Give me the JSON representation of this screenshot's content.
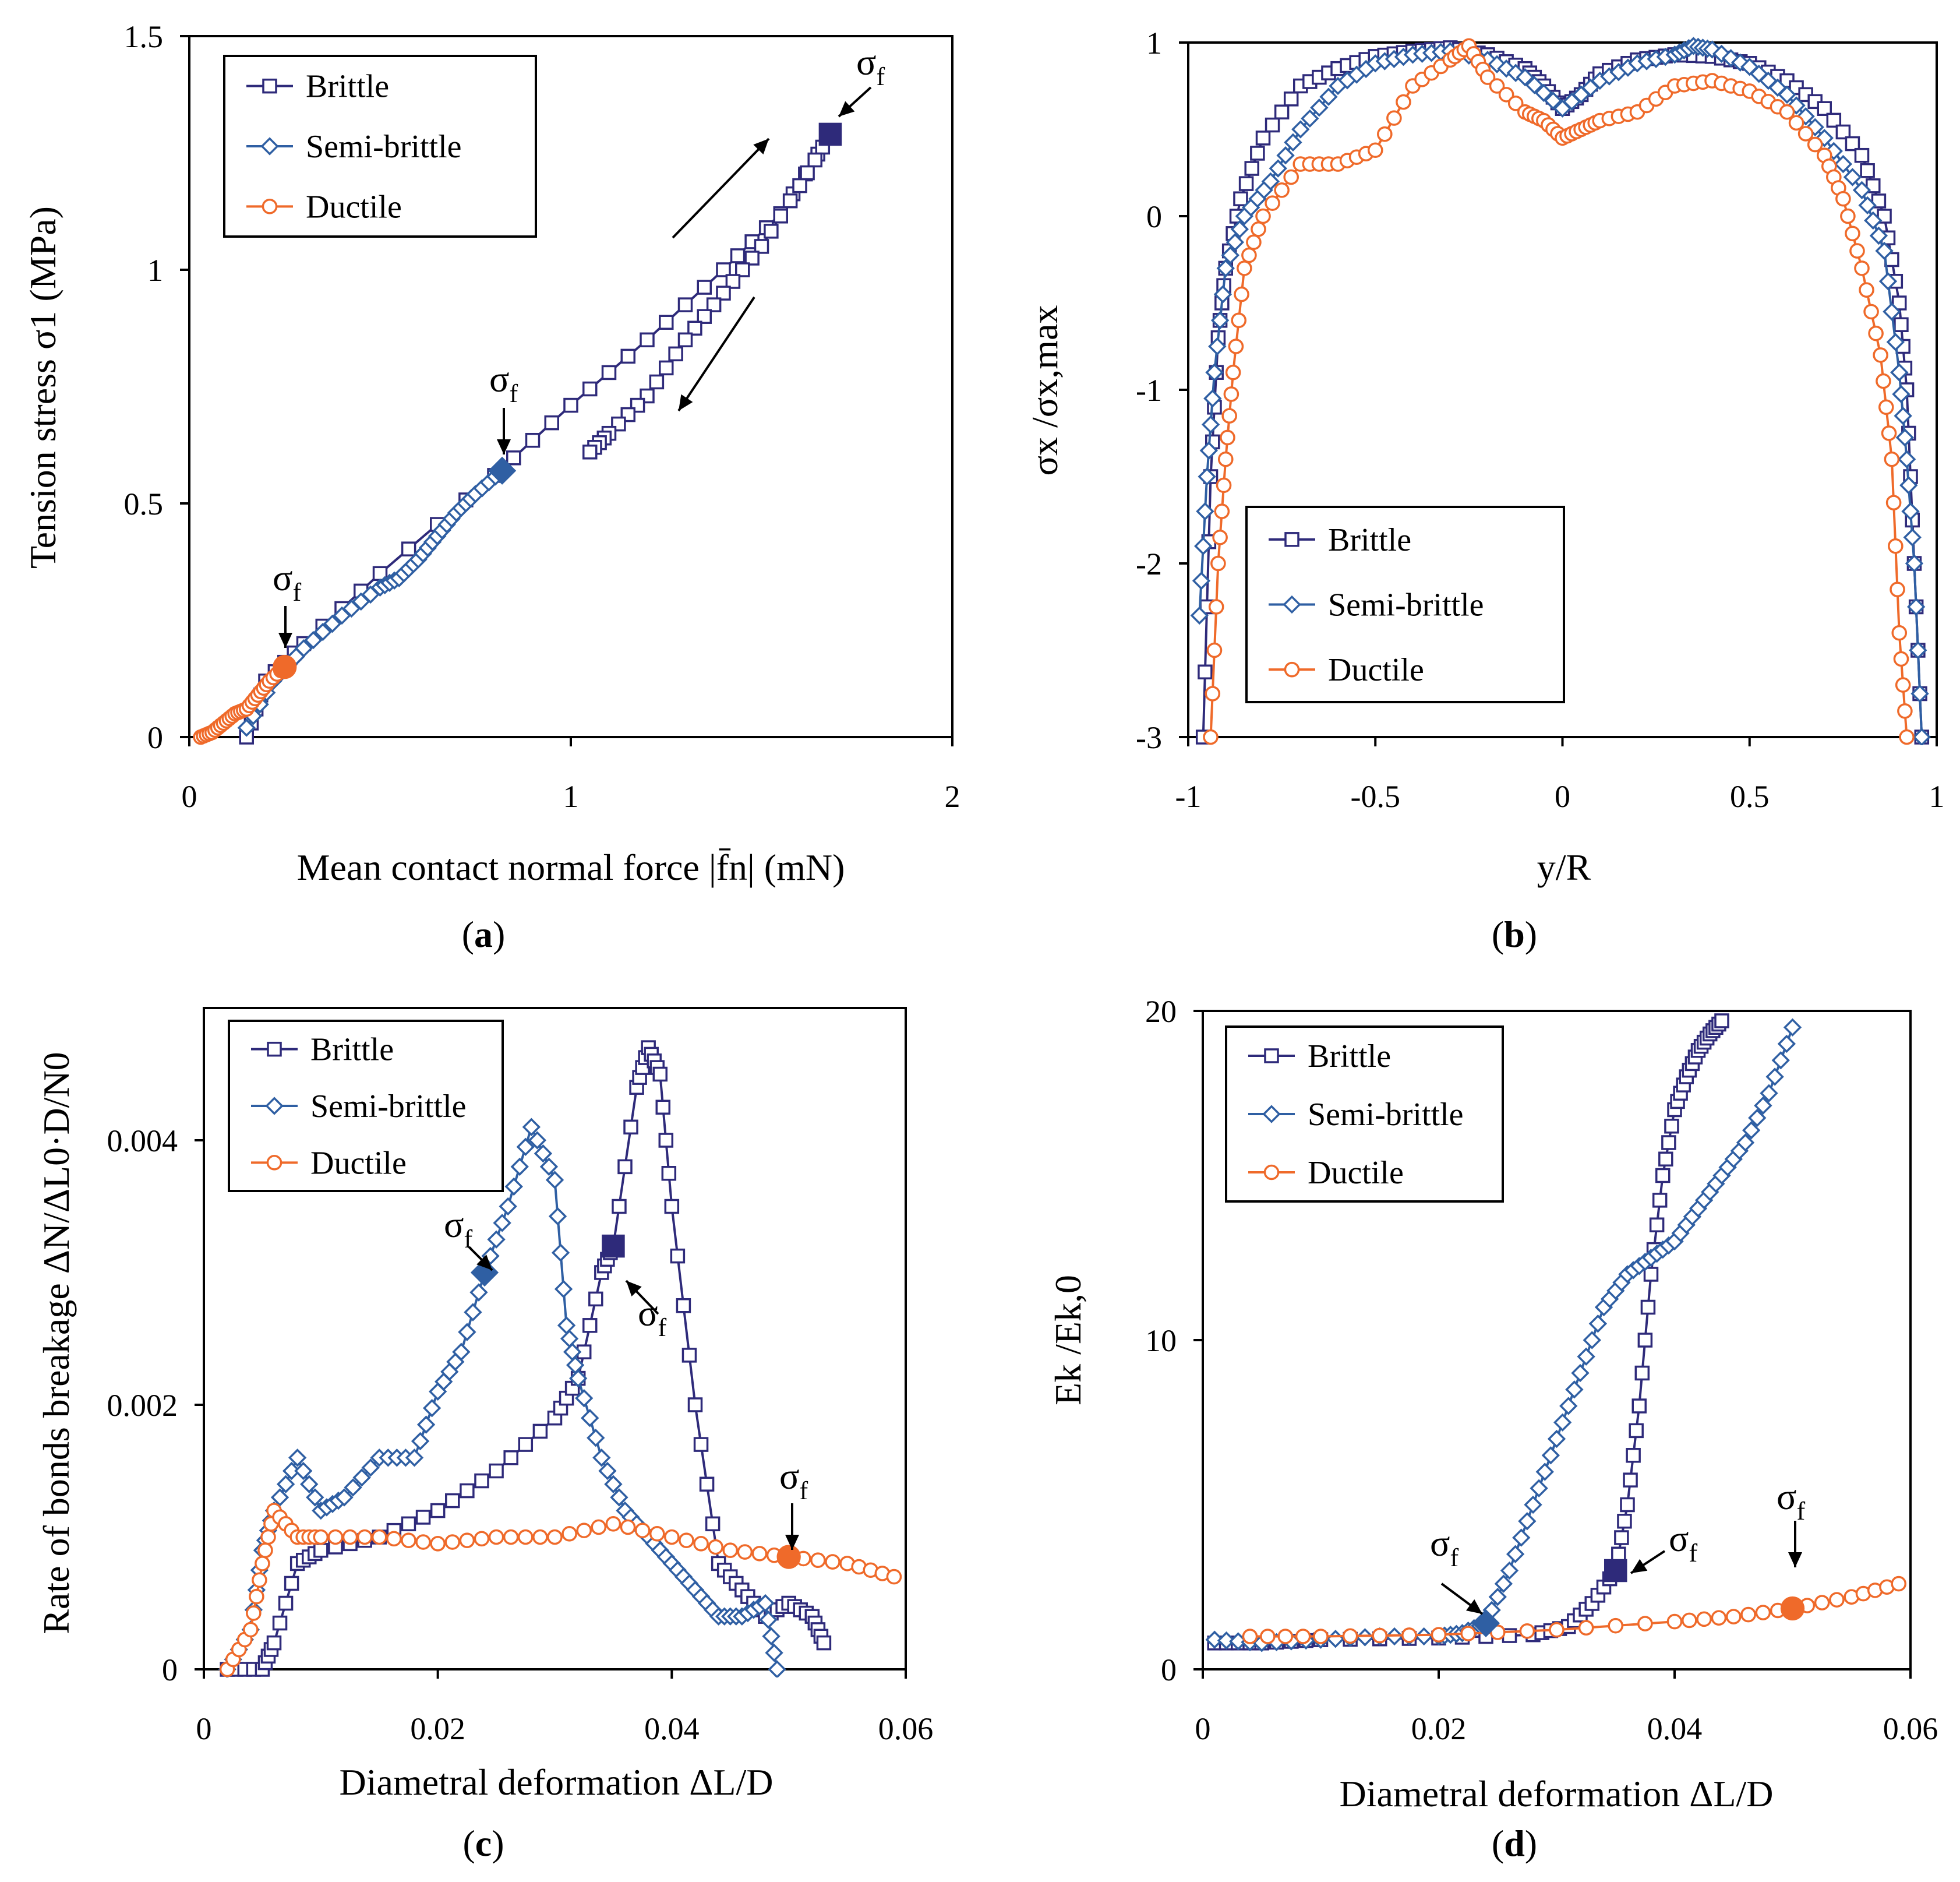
{
  "colors": {
    "brittle": "#2e2a7a",
    "semi_brittle": "#2f5fa3",
    "ductile": "#ef6a2a",
    "frame": "#000000"
  },
  "legend": {
    "brittle": "Brittle",
    "semi_brittle": "Semi-brittle",
    "ductile": "Ductile"
  },
  "failure_label": "σ",
  "failure_sub": "f",
  "chart_data": [
    {
      "panel": "(a)",
      "panel_letter": "a",
      "type": "line",
      "title": "",
      "xlabel": "Mean contact normal force |f̄n|  (mN)",
      "ylabel": "Tension stress  σ1   (MPa)",
      "xlim": [
        0,
        2
      ],
      "ylim": [
        0,
        1.5
      ],
      "xticks": [
        "0",
        "1",
        "2"
      ],
      "yticks": [
        "0",
        "0.5",
        "1",
        "1.5"
      ],
      "legend_position": "top-left",
      "series": [
        {
          "name": "Brittle",
          "marker": "square",
          "x": [
            0.15,
            0.2,
            0.3,
            0.5,
            0.8,
            1.0,
            1.2,
            1.4,
            1.55,
            1.68,
            1.6,
            1.5,
            1.4,
            1.3,
            1.2,
            1.1,
            1.05
          ],
          "y": [
            0.0,
            0.12,
            0.2,
            0.35,
            0.56,
            0.71,
            0.85,
            1.0,
            1.12,
            1.29,
            1.18,
            1.05,
            0.95,
            0.85,
            0.73,
            0.65,
            0.61
          ]
        },
        {
          "name": "Semi-brittle",
          "marker": "diamond",
          "x": [
            0.15,
            0.22,
            0.3,
            0.4,
            0.5,
            0.55,
            0.6,
            0.65,
            0.7,
            0.75,
            0.82
          ],
          "y": [
            0.02,
            0.12,
            0.19,
            0.26,
            0.32,
            0.34,
            0.38,
            0.43,
            0.48,
            0.52,
            0.57
          ]
        },
        {
          "name": "Ductile",
          "marker": "circle",
          "x": [
            0.03,
            0.06,
            0.09,
            0.12,
            0.15,
            0.18,
            0.21,
            0.25
          ],
          "y": [
            0.0,
            0.01,
            0.03,
            0.05,
            0.06,
            0.09,
            0.12,
            0.15
          ]
        }
      ],
      "failure_points": [
        {
          "series": "Brittle",
          "x": 1.68,
          "y": 1.29
        },
        {
          "series": "Semi-brittle",
          "x": 0.82,
          "y": 0.57
        },
        {
          "series": "Ductile",
          "x": 0.25,
          "y": 0.15
        }
      ]
    },
    {
      "panel": "(b)",
      "panel_letter": "b",
      "type": "line",
      "title": "",
      "xlabel": "y/R",
      "ylabel": "σx /σx,max",
      "xlim": [
        -1,
        1
      ],
      "ylim": [
        -3,
        1
      ],
      "xticks": [
        "-1",
        "-0.5",
        "0",
        "0.5",
        "1"
      ],
      "yticks": [
        "-3",
        "-2",
        "-1",
        "0",
        "1"
      ],
      "legend_position": "bottom-left",
      "series": [
        {
          "name": "Brittle",
          "marker": "square",
          "x": [
            -0.96,
            -0.94,
            -0.92,
            -0.9,
            -0.86,
            -0.8,
            -0.7,
            -0.6,
            -0.5,
            -0.4,
            -0.3,
            -0.2,
            -0.1,
            -0.05,
            0.0,
            0.05,
            0.1,
            0.2,
            0.3,
            0.4,
            0.5,
            0.6,
            0.7,
            0.8,
            0.86,
            0.9,
            0.92,
            0.94,
            0.96
          ],
          "y": [
            -3.0,
            -1.5,
            -0.7,
            -0.3,
            0.1,
            0.45,
            0.75,
            0.85,
            0.92,
            0.95,
            0.97,
            0.93,
            0.85,
            0.75,
            0.62,
            0.7,
            0.82,
            0.9,
            0.93,
            0.92,
            0.88,
            0.78,
            0.62,
            0.35,
            0.0,
            -0.5,
            -1.0,
            -2.0,
            -3.0
          ]
        },
        {
          "name": "Semi-brittle",
          "marker": "diamond",
          "x": [
            -0.97,
            -0.95,
            -0.93,
            -0.9,
            -0.85,
            -0.78,
            -0.7,
            -0.6,
            -0.5,
            -0.4,
            -0.3,
            -0.2,
            -0.1,
            0.0,
            0.1,
            0.2,
            0.3,
            0.35,
            0.4,
            0.5,
            0.6,
            0.7,
            0.8,
            0.86,
            0.9,
            0.92,
            0.94,
            0.96
          ],
          "y": [
            -2.3,
            -1.5,
            -0.9,
            -0.3,
            0.0,
            0.2,
            0.5,
            0.75,
            0.88,
            0.93,
            0.95,
            0.9,
            0.8,
            0.62,
            0.78,
            0.88,
            0.93,
            0.98,
            0.96,
            0.86,
            0.7,
            0.45,
            0.15,
            -0.2,
            -0.9,
            -1.4,
            -2.0,
            -3.0
          ]
        },
        {
          "name": "Ductile",
          "marker": "circle",
          "x": [
            -0.94,
            -0.92,
            -0.9,
            -0.88,
            -0.85,
            -0.8,
            -0.7,
            -0.6,
            -0.5,
            -0.4,
            -0.3,
            -0.25,
            -0.2,
            -0.1,
            -0.05,
            0.0,
            0.05,
            0.1,
            0.2,
            0.3,
            0.4,
            0.5,
            0.6,
            0.7,
            0.75,
            0.8,
            0.85,
            0.88,
            0.9,
            0.92
          ],
          "y": [
            -3.0,
            -2.0,
            -1.4,
            -0.9,
            -0.3,
            0.0,
            0.3,
            0.3,
            0.38,
            0.75,
            0.9,
            0.98,
            0.8,
            0.6,
            0.55,
            0.45,
            0.5,
            0.55,
            0.6,
            0.75,
            0.78,
            0.72,
            0.6,
            0.35,
            0.1,
            -0.3,
            -0.8,
            -1.4,
            -2.4,
            -3.0
          ]
        }
      ]
    },
    {
      "panel": "(c)",
      "panel_letter": "c",
      "type": "line",
      "title": "",
      "xlabel": "Diametral deformation   ΔL/D",
      "ylabel": "Rate of bonds breakage    ΔN/ΔL0·D/N0",
      "xlim": [
        0,
        0.06
      ],
      "ylim": [
        0,
        0.005
      ],
      "xticks": [
        "0",
        "0.02",
        "0.04",
        "0.06"
      ],
      "yticks": [
        "0",
        "0.002",
        "0.004"
      ],
      "legend_position": "top-left",
      "series": [
        {
          "name": "Brittle",
          "marker": "square",
          "x": [
            0.002,
            0.005,
            0.006,
            0.008,
            0.01,
            0.015,
            0.02,
            0.025,
            0.03,
            0.032,
            0.034,
            0.035,
            0.037,
            0.038,
            0.039,
            0.04,
            0.042,
            0.044,
            0.046,
            0.048,
            0.05,
            0.052,
            0.053
          ],
          "y": [
            0.0,
            0.0,
            0.0002,
            0.0008,
            0.0009,
            0.001,
            0.0012,
            0.0015,
            0.0019,
            0.0022,
            0.003,
            0.0032,
            0.0044,
            0.0047,
            0.0045,
            0.0035,
            0.002,
            0.0008,
            0.0006,
            0.0004,
            0.0005,
            0.0004,
            0.0002
          ]
        },
        {
          "name": "Semi-brittle",
          "marker": "diamond",
          "x": [
            0.002,
            0.004,
            0.005,
            0.006,
            0.008,
            0.01,
            0.012,
            0.015,
            0.018,
            0.02,
            0.022,
            0.024,
            0.026,
            0.028,
            0.03,
            0.031,
            0.032,
            0.034,
            0.036,
            0.038,
            0.04,
            0.042,
            0.044,
            0.046,
            0.048,
            0.049
          ],
          "y": [
            0.0,
            0.0003,
            0.0009,
            0.0012,
            0.0016,
            0.0012,
            0.0013,
            0.0016,
            0.0016,
            0.0021,
            0.0024,
            0.003,
            0.0035,
            0.0041,
            0.0037,
            0.0026,
            0.0022,
            0.0016,
            0.0012,
            0.001,
            0.0008,
            0.0006,
            0.0004,
            0.0004,
            0.0005,
            0.0
          ]
        },
        {
          "name": "Ductile",
          "marker": "circle",
          "x": [
            0.002,
            0.004,
            0.005,
            0.006,
            0.008,
            0.01,
            0.015,
            0.02,
            0.025,
            0.03,
            0.035,
            0.04,
            0.045,
            0.05,
            0.055,
            0.059
          ],
          "y": [
            0.0,
            0.0003,
            0.0008,
            0.0012,
            0.001,
            0.001,
            0.001,
            0.00095,
            0.001,
            0.001,
            0.0011,
            0.001,
            0.0009,
            0.00085,
            0.0008,
            0.0007
          ]
        }
      ],
      "failure_points": [
        {
          "series": "Semi-brittle",
          "x": 0.024,
          "y": 0.003
        },
        {
          "series": "Brittle",
          "x": 0.035,
          "y": 0.0032
        },
        {
          "series": "Ductile",
          "x": 0.05,
          "y": 0.00085
        }
      ]
    },
    {
      "panel": "(d)",
      "panel_letter": "d",
      "type": "line",
      "title": "",
      "xlabel": "Diametral deformation   ΔL/D",
      "ylabel": "Ek /Ek,0",
      "xlim": [
        0,
        0.06
      ],
      "ylim": [
        0,
        20
      ],
      "xticks": [
        "0",
        "0.02",
        "0.04",
        "0.06"
      ],
      "yticks": [
        "0",
        "10",
        "20"
      ],
      "legend_position": "top-left",
      "series": [
        {
          "name": "Brittle",
          "marker": "square",
          "x": [
            0.001,
            0.005,
            0.01,
            0.02,
            0.028,
            0.031,
            0.033,
            0.035,
            0.036,
            0.037,
            0.038,
            0.039,
            0.04,
            0.041,
            0.042,
            0.043,
            0.044
          ],
          "y": [
            0.8,
            0.8,
            0.9,
            0.95,
            1.05,
            1.3,
            2.0,
            3.0,
            5.0,
            8.0,
            12.0,
            15.0,
            17.0,
            18.0,
            18.8,
            19.3,
            19.7
          ]
        },
        {
          "name": "Semi-brittle",
          "marker": "diamond",
          "x": [
            0.001,
            0.005,
            0.01,
            0.015,
            0.02,
            0.022,
            0.024,
            0.026,
            0.028,
            0.03,
            0.032,
            0.034,
            0.036,
            0.038,
            0.04,
            0.042,
            0.044,
            0.046,
            0.048,
            0.05
          ],
          "y": [
            0.9,
            0.8,
            0.9,
            1.0,
            1.0,
            1.1,
            1.4,
            3.0,
            5.0,
            7.0,
            9.0,
            11.0,
            12.0,
            12.5,
            13.0,
            14.0,
            15.0,
            16.0,
            17.5,
            19.5
          ]
        },
        {
          "name": "Ductile",
          "marker": "circle",
          "x": [
            0.004,
            0.01,
            0.02,
            0.03,
            0.04,
            0.045,
            0.05,
            0.055,
            0.059
          ],
          "y": [
            1.0,
            1.0,
            1.05,
            1.2,
            1.45,
            1.6,
            1.85,
            2.2,
            2.6
          ]
        }
      ],
      "failure_points": [
        {
          "series": "Semi-brittle",
          "x": 0.024,
          "y": 1.4
        },
        {
          "series": "Brittle",
          "x": 0.035,
          "y": 3.0
        },
        {
          "series": "Ductile",
          "x": 0.05,
          "y": 1.85
        }
      ]
    }
  ]
}
